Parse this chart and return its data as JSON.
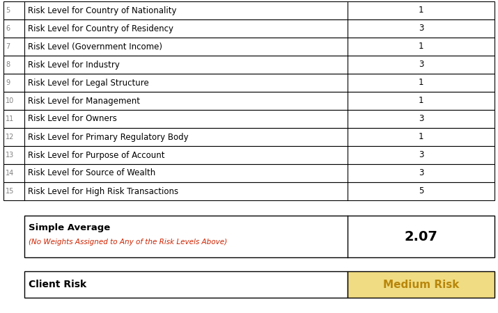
{
  "rows": [
    {
      "num": "5",
      "label": "Risk Level for Country of Nationality",
      "value": "1"
    },
    {
      "num": "6",
      "label": "Risk Level for Country of Residency",
      "value": "3"
    },
    {
      "num": "7",
      "label": "Risk Level (Government Income)",
      "value": "1"
    },
    {
      "num": "8",
      "label": "Risk Level for Industry",
      "value": "3"
    },
    {
      "num": "9",
      "label": "Risk Level for Legal Structure",
      "value": "1"
    },
    {
      "num": "10",
      "label": "Risk Level for Management",
      "value": "1"
    },
    {
      "num": "11",
      "label": "Risk Level for Owners",
      "value": "3"
    },
    {
      "num": "12",
      "label": "Risk Level for Primary Regulatory Body",
      "value": "1"
    },
    {
      "num": "13",
      "label": "Risk Level for Purpose of Account",
      "value": "3"
    },
    {
      "num": "14",
      "label": "Risk Level for Source of Wealth",
      "value": "3"
    },
    {
      "num": "15",
      "label": "Risk Level for High Risk Transactions",
      "value": "5"
    }
  ],
  "simple_average_label": "Simple Average",
  "simple_average_sublabel": "(No Weights Assigned to Any of the Risk Levels Above)",
  "simple_average_value": "2.07",
  "client_risk_label": "Client Risk",
  "client_risk_value": "Medium Risk",
  "client_risk_bg": "#F0DC82",
  "client_risk_text_color": "#B8860B",
  "border_color": "#000000",
  "num_color": "#808080",
  "row_text_color": "#000000",
  "sublabel_color": "#CC2200",
  "bg_white": "#FFFFFF",
  "fig_bg": "#FFFFFF"
}
